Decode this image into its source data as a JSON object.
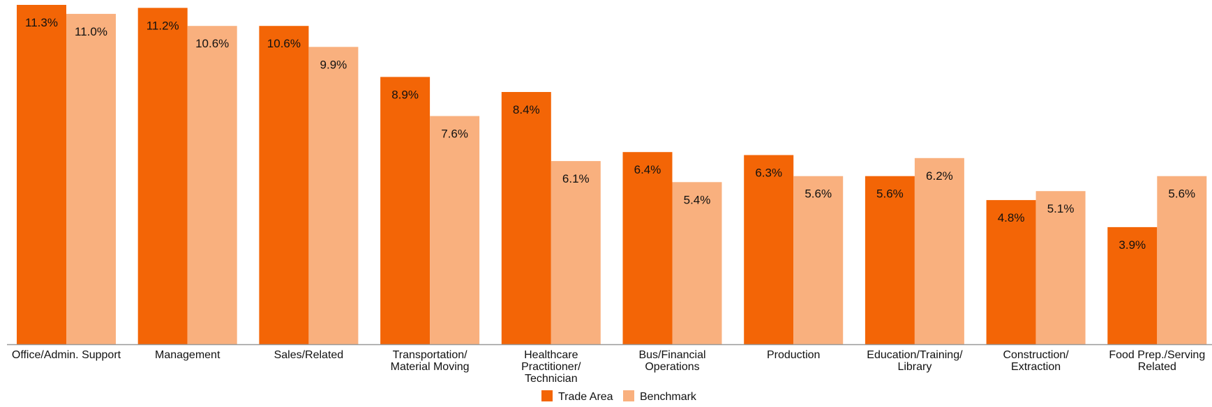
{
  "chart_data": {
    "type": "bar",
    "categories": [
      [
        "Office/Admin. Support"
      ],
      [
        "Management"
      ],
      [
        "Sales/Related"
      ],
      [
        "Transportation/",
        "Material Moving"
      ],
      [
        "Healthcare",
        "Practitioner/",
        "Technician"
      ],
      [
        "Bus/Financial",
        "Operations"
      ],
      [
        "Production"
      ],
      [
        "Education/Training/",
        "Library"
      ],
      [
        "Construction/",
        "Extraction"
      ],
      [
        "Food Prep./Serving",
        "Related"
      ]
    ],
    "series": [
      {
        "name": "Trade Area",
        "color": "#f36506",
        "values": [
          11.3,
          11.2,
          10.6,
          8.9,
          8.4,
          6.4,
          6.3,
          5.6,
          4.8,
          3.9
        ],
        "labels": [
          "11.3%",
          "11.2%",
          "10.6%",
          "8.9%",
          "8.4%",
          "6.4%",
          "6.3%",
          "5.6%",
          "4.8%",
          "3.9%"
        ]
      },
      {
        "name": "Benchmark",
        "color": "#f9b07e",
        "values": [
          11.0,
          10.6,
          9.9,
          7.6,
          6.1,
          5.4,
          5.6,
          6.2,
          5.1,
          5.6
        ],
        "labels": [
          "11.0%",
          "10.6%",
          "9.9%",
          "7.6%",
          "6.1%",
          "5.4%",
          "5.6%",
          "6.2%",
          "5.1%",
          "5.6%"
        ]
      }
    ],
    "ylim": [
      0,
      11.3
    ],
    "grid": false,
    "legend_position": "bottom-center",
    "axis_color": "#999999"
  }
}
